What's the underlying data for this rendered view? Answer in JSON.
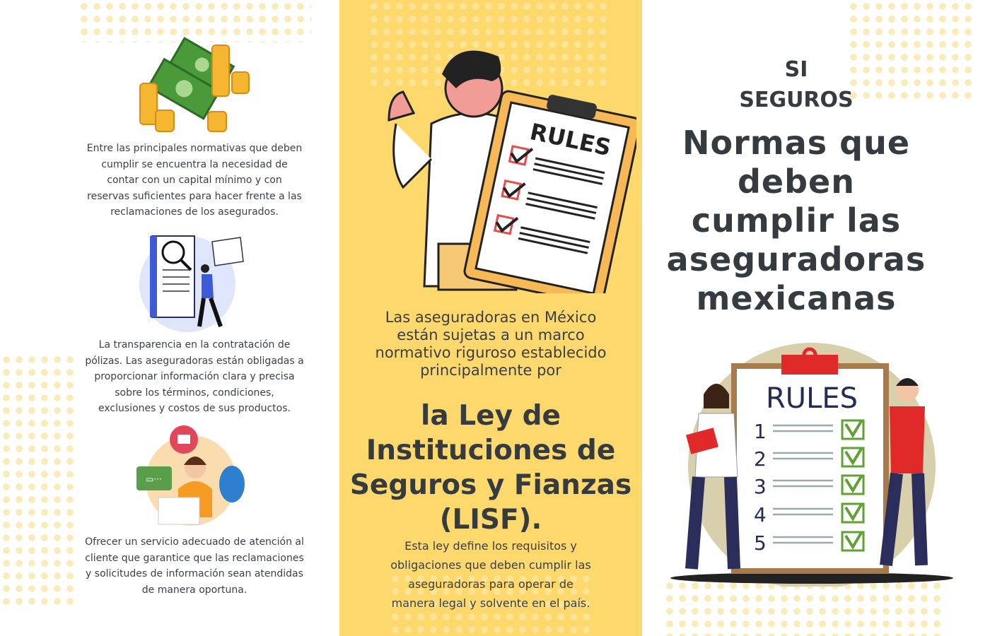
{
  "left_panel": {
    "items": [
      {
        "icon": "money-icon",
        "text": "Entre las principales normativas que deben cumplir se encuentra la necesidad de contar con un capital mínimo y con reservas suficientes para hacer frente a las reclamaciones de los asegurados."
      },
      {
        "icon": "document-inspection-icon",
        "text": "La transparencia en la contratación de pólizas. Las aseguradoras están obligadas a proporcionar información clara y precisa sobre los términos, condiciones, exclusiones y costos de sus productos."
      },
      {
        "icon": "customer-service-icon",
        "text": "Ofrecer un servicio adecuado de atención al cliente que garantice que las reclamaciones y solicitudes de información sean atendidas de manera oportuna."
      }
    ]
  },
  "middle_panel": {
    "illustration_label": "RULES",
    "intro": "Las aseguradoras en México están sujetas a un marco normativo riguroso establecido principalmente por",
    "law": "la Ley de Instituciones de Seguros y Fianzas (LISF).",
    "description": "Esta ley define los requisitos y obligaciones que deben cumplir las aseguradoras para operar de manera legal y solvente en el país.",
    "background_color": "#fdd86d"
  },
  "right_panel": {
    "brand_line1": "SI",
    "brand_line2": "SEGUROS",
    "title": "Normas que deben cumplir las aseguradoras mexicanas",
    "illustration_label": "RULES",
    "rule_numbers": [
      "1",
      "2",
      "3",
      "4",
      "5"
    ]
  }
}
